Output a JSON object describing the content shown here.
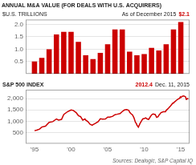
{
  "chart_data": [
    {
      "type": "bar",
      "title": "ANNUAL M&A VALUE (FOR DEALS WITH U.S. ACQUIRERS)",
      "ylabel": "$U.S. TRILLIONS",
      "annotations": [
        {
          "text": "As of December 2015"
        },
        {
          "text": "$2.1",
          "color": "#cc0000"
        }
      ],
      "x": [
        1995,
        1996,
        1997,
        1998,
        1999,
        2000,
        2001,
        2002,
        2003,
        2004,
        2005,
        2006,
        2007,
        2008,
        2009,
        2010,
        2011,
        2012,
        2013,
        2014,
        2015
      ],
      "values": [
        0.5,
        0.65,
        1.0,
        1.6,
        1.7,
        1.7,
        1.3,
        0.75,
        0.6,
        0.85,
        1.2,
        1.8,
        1.8,
        0.9,
        0.75,
        0.8,
        1.05,
        0.95,
        1.2,
        1.8,
        2.1
      ],
      "color": "#cc0000",
      "xlim": [
        1993.8,
        2016.2
      ],
      "ylim": [
        0,
        2.2
      ],
      "yticks": [
        0.5,
        {
          "value": 1.0,
          "label": "1.0"
        },
        1.5,
        {
          "value": 2.0,
          "label": "2.0"
        }
      ],
      "tick_labels": "y",
      "grid": true
    },
    {
      "type": "line",
      "annotations": [
        {
          "text": "2012.4",
          "color": "#cc0000"
        },
        {
          "text": "Dec. 11, 2015"
        }
      ],
      "source": "Sources: Dealogic, S&P Capital IQ",
      "x": [
        1995.0,
        1995.3,
        1995.7,
        1996.0,
        1996.5,
        1997.0,
        1997.5,
        1998.0,
        1998.3,
        1998.7,
        1999.0,
        1999.5,
        2000.0,
        2000.3,
        2000.7,
        2001.0,
        2001.3,
        2001.6,
        2001.9,
        2002.0,
        2002.3,
        2002.6,
        2002.9,
        2003.0,
        2003.3,
        2003.7,
        2004.0,
        2004.3,
        2004.7,
        2005.0,
        2005.3,
        2005.7,
        2006.0,
        2006.3,
        2006.7,
        2007.0,
        2007.3,
        2007.6,
        2007.9,
        2008.0,
        2008.2,
        2008.4,
        2008.6,
        2008.8,
        2008.95,
        2009.0,
        2009.2,
        2009.4,
        2009.6,
        2009.8,
        2010.0,
        2010.2,
        2010.4,
        2010.6,
        2010.8,
        2011.0,
        2011.2,
        2011.5,
        2011.7,
        2011.9,
        2012.0,
        2012.3,
        2012.6,
        2012.9,
        2013.0,
        2013.3,
        2013.6,
        2013.9,
        2014.0,
        2014.2,
        2014.4,
        2014.6,
        2014.8,
        2014.95,
        2015.0,
        2015.2,
        2015.4,
        2015.55,
        2015.65,
        2015.75,
        2015.85,
        2015.92,
        2015.97
      ],
      "series": [
        {
          "name": "S&P 500 INDEX",
          "color": "#cc0000",
          "values": [
            580,
            600,
            650,
            740,
            780,
            950,
            980,
            1100,
            1050,
            1080,
            1300,
            1420,
            1500,
            1480,
            1380,
            1250,
            1200,
            1050,
            1100,
            1050,
            980,
            860,
            820,
            850,
            900,
            980,
            1110,
            1090,
            1100,
            1180,
            1180,
            1220,
            1290,
            1310,
            1340,
            1430,
            1500,
            1520,
            1480,
            1400,
            1330,
            1280,
            1150,
            950,
            880,
            825,
            735,
            880,
            1000,
            1100,
            1115,
            1150,
            1100,
            1080,
            1180,
            1280,
            1320,
            1300,
            1170,
            1200,
            1260,
            1380,
            1420,
            1420,
            1480,
            1570,
            1680,
            1800,
            1820,
            1870,
            1930,
            1980,
            2010,
            2080,
            2050,
            2110,
            2120,
            2100,
            2080,
            1970,
            1980,
            2015,
            2012
          ]
        }
      ],
      "xlim": [
        1993.8,
        2016.2
      ],
      "xticks": [
        {
          "value": 1995,
          "label": "'95"
        },
        {
          "value": 2000,
          "label": "'00"
        },
        {
          "value": 2005,
          "label": "'05"
        },
        {
          "value": 2010,
          "label": "'10"
        },
        {
          "value": 2015,
          "label": "'15"
        }
      ],
      "ylim": [
        0,
        2400
      ],
      "yticks": [
        500,
        {
          "value": 1000,
          "label": "1,000"
        },
        {
          "value": 1500,
          "label": "1,500"
        },
        {
          "value": 2000,
          "label": "2,000"
        }
      ],
      "grid": true
    }
  ]
}
